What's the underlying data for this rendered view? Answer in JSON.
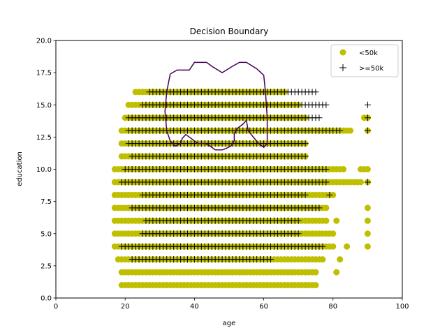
{
  "chart_data": {
    "type": "scatter",
    "title": "Decision Boundary",
    "xlabel": "age",
    "ylabel": "education",
    "xlim": [
      0,
      100
    ],
    "ylim": [
      0,
      20
    ],
    "xticks": [
      "0",
      "20",
      "40",
      "60",
      "80",
      "100"
    ],
    "yticks": [
      "0.0",
      "2.5",
      "5.0",
      "7.5",
      "10.0",
      "12.5",
      "15.0",
      "17.5",
      "20.0"
    ],
    "legend_position": "top-right",
    "colors": {
      "below": "#bfbf00",
      "above": "#000000",
      "boundary": "#440154"
    },
    "series": [
      {
        "name": "<50k",
        "marker": "circle",
        "rows": [
          {
            "y": 1,
            "x_ranges": [
              [
                19,
                75
              ]
            ]
          },
          {
            "y": 2,
            "x_ranges": [
              [
                19,
                75
              ],
              [
                81,
                81
              ]
            ]
          },
          {
            "y": 3,
            "x_ranges": [
              [
                18,
                77
              ],
              [
                82,
                82
              ]
            ]
          },
          {
            "y": 4,
            "x_ranges": [
              [
                17,
                80
              ],
              [
                84,
                84
              ],
              [
                90,
                90
              ]
            ]
          },
          {
            "y": 5,
            "x_ranges": [
              [
                17,
                80
              ],
              [
                90,
                90
              ]
            ]
          },
          {
            "y": 6,
            "x_ranges": [
              [
                17,
                78
              ],
              [
                81,
                81
              ],
              [
                90,
                90
              ]
            ]
          },
          {
            "y": 7,
            "x_ranges": [
              [
                17,
                78
              ],
              [
                90,
                90
              ]
            ]
          },
          {
            "y": 8,
            "x_ranges": [
              [
                17,
                80
              ]
            ]
          },
          {
            "y": 9,
            "x_ranges": [
              [
                17,
                88
              ],
              [
                90,
                90
              ]
            ]
          },
          {
            "y": 10,
            "x_ranges": [
              [
                17,
                83
              ],
              [
                88,
                90
              ]
            ]
          },
          {
            "y": 11,
            "x_ranges": [
              [
                19,
                72
              ]
            ]
          },
          {
            "y": 12,
            "x_ranges": [
              [
                19,
                72
              ]
            ]
          },
          {
            "y": 13,
            "x_ranges": [
              [
                19,
                85
              ],
              [
                90,
                90
              ]
            ]
          },
          {
            "y": 14,
            "x_ranges": [
              [
                20,
                72
              ],
              [
                89,
                90
              ]
            ]
          },
          {
            "y": 15,
            "x_ranges": [
              [
                21,
                70
              ]
            ]
          },
          {
            "y": 16,
            "x_ranges": [
              [
                23,
                66
              ]
            ]
          }
        ]
      },
      {
        "name": ">=50k",
        "marker": "plus",
        "rows": [
          {
            "y": 3,
            "x_ranges": [
              [
                22,
                62
              ]
            ]
          },
          {
            "y": 4,
            "x_ranges": [
              [
                19,
                77
              ]
            ]
          },
          {
            "y": 5,
            "x_ranges": [
              [
                25,
                70
              ]
            ]
          },
          {
            "y": 6,
            "x_ranges": [
              [
                26,
                70
              ]
            ]
          },
          {
            "y": 7,
            "x_ranges": [
              [
                22,
                76
              ]
            ]
          },
          {
            "y": 8,
            "x_ranges": [
              [
                25,
                72
              ],
              [
                79,
                79
              ]
            ]
          },
          {
            "y": 9,
            "x_ranges": [
              [
                19,
                78
              ],
              [
                90,
                90
              ]
            ]
          },
          {
            "y": 10,
            "x_ranges": [
              [
                20,
                78
              ]
            ]
          },
          {
            "y": 11,
            "x_ranges": [
              [
                22,
                72
              ]
            ]
          },
          {
            "y": 12,
            "x_ranges": [
              [
                21,
                72
              ]
            ]
          },
          {
            "y": 13,
            "x_ranges": [
              [
                21,
                82
              ],
              [
                90,
                90
              ]
            ]
          },
          {
            "y": 14,
            "x_ranges": [
              [
                21,
                76
              ],
              [
                90,
                90
              ]
            ]
          },
          {
            "y": 15,
            "x_ranges": [
              [
                25,
                78
              ],
              [
                90,
                90
              ]
            ]
          },
          {
            "y": 16,
            "x_ranges": [
              [
                27,
                75
              ]
            ]
          }
        ]
      }
    ],
    "decision_boundary": [
      [
        33,
        17.4
      ],
      [
        35,
        17.7
      ],
      [
        38.5,
        17.7
      ],
      [
        40,
        18.3
      ],
      [
        43.5,
        18.3
      ],
      [
        45,
        18.0
      ],
      [
        48,
        17.5
      ],
      [
        51,
        18.0
      ],
      [
        53,
        18.3
      ],
      [
        55,
        18.3
      ],
      [
        58,
        17.8
      ],
      [
        60,
        17.3
      ],
      [
        60.5,
        16.0
      ],
      [
        61,
        14.0
      ],
      [
        61,
        12.0
      ],
      [
        60,
        11.7
      ],
      [
        58.5,
        12.0
      ],
      [
        57,
        12.5
      ],
      [
        55.5,
        13.0
      ],
      [
        55,
        13.8
      ],
      [
        54,
        13.5
      ],
      [
        52.5,
        13.2
      ],
      [
        51.5,
        12.8
      ],
      [
        51.5,
        12.2
      ],
      [
        50.5,
        11.8
      ],
      [
        49,
        11.6
      ],
      [
        48,
        11.5
      ],
      [
        46,
        11.5
      ],
      [
        45,
        11.7
      ],
      [
        44,
        11.9
      ],
      [
        43,
        12.0
      ],
      [
        41,
        12.0
      ],
      [
        39,
        12.4
      ],
      [
        37.5,
        12.7
      ],
      [
        36.5,
        12.4
      ],
      [
        36,
        12.0
      ],
      [
        34.5,
        11.8
      ],
      [
        33,
        12.2
      ],
      [
        32,
        13.0
      ],
      [
        31.5,
        14.5
      ],
      [
        32,
        16.0
      ],
      [
        33,
        17.4
      ]
    ]
  }
}
